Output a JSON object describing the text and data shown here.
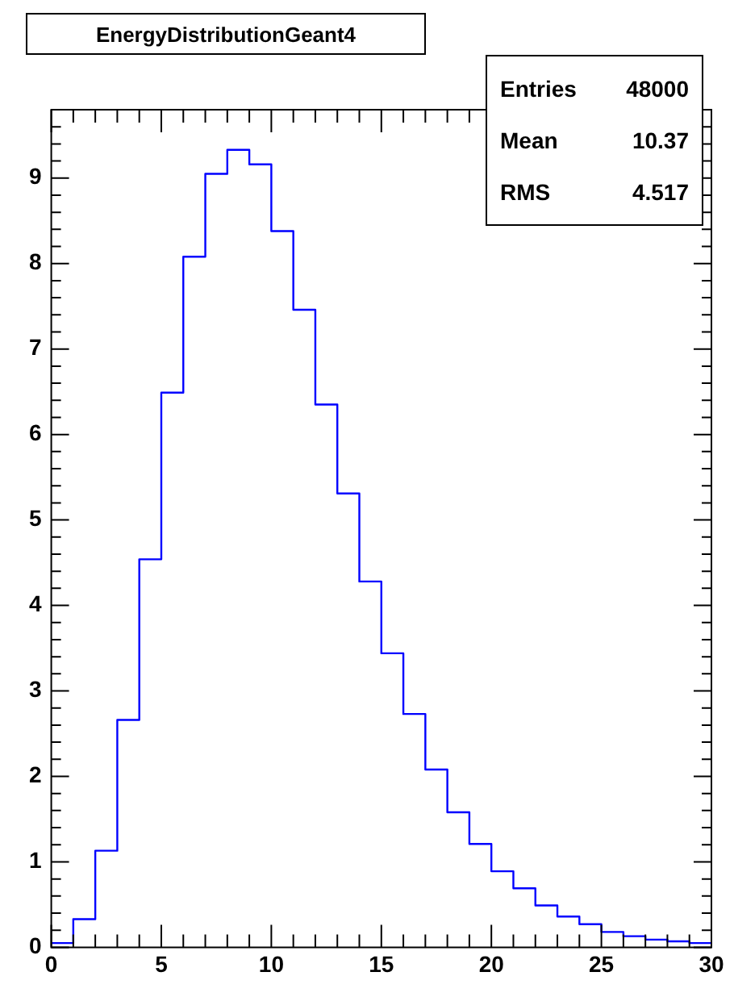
{
  "chart_data": {
    "type": "histogram",
    "title": "EnergyDistributionGeant4",
    "bins": [
      0,
      1,
      2,
      3,
      4,
      5,
      6,
      7,
      8,
      9,
      10,
      11,
      12,
      13,
      14,
      15,
      16,
      17,
      18,
      19,
      20,
      21,
      22,
      23,
      24,
      25,
      26,
      27,
      28,
      29,
      30
    ],
    "values": [
      0.05,
      0.33,
      1.13,
      2.66,
      4.54,
      6.49,
      8.08,
      9.05,
      9.33,
      9.16,
      8.38,
      7.46,
      6.35,
      5.31,
      4.28,
      3.44,
      2.73,
      2.08,
      1.58,
      1.21,
      0.89,
      0.69,
      0.49,
      0.36,
      0.27,
      0.18,
      0.13,
      0.09,
      0.07,
      0.05
    ],
    "color": "#0000ff",
    "xlim": [
      0,
      30
    ],
    "ylim": [
      0,
      9.8
    ],
    "xticks": [
      0,
      5,
      10,
      15,
      20,
      25,
      30
    ],
    "yticks": [
      0,
      1,
      2,
      3,
      4,
      5,
      6,
      7,
      8,
      9
    ],
    "grid": false,
    "annotations": [
      "Entries",
      "48000",
      "Mean",
      "10.37",
      "RMS",
      "4.517"
    ]
  }
}
